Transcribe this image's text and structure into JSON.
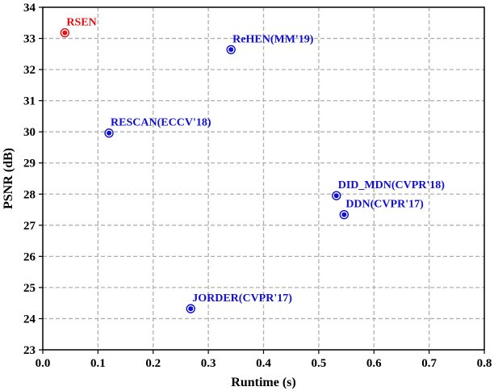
{
  "chart_data": {
    "type": "scatter",
    "xlabel": "Runtime (s)",
    "ylabel": "PSNR (dB)",
    "xlim": [
      0.0,
      0.8
    ],
    "ylim": [
      23,
      34
    ],
    "xticks": [
      "0.0",
      "0.1",
      "0.2",
      "0.3",
      "0.4",
      "0.5",
      "0.6",
      "0.7",
      "0.8"
    ],
    "yticks": [
      "23",
      "24",
      "25",
      "26",
      "27",
      "28",
      "29",
      "30",
      "31",
      "32",
      "33",
      "34"
    ],
    "grid": true,
    "points": [
      {
        "label": "RSEN",
        "x": 0.04,
        "y": 33.18,
        "color": "#e01010",
        "label_pos": "above-right"
      },
      {
        "label": "ReHEN(MM'19)",
        "x": 0.341,
        "y": 32.64,
        "color": "#1010d0",
        "label_pos": "above-right"
      },
      {
        "label": "RESCAN(ECCV'18)",
        "x": 0.12,
        "y": 29.96,
        "color": "#1010d0",
        "label_pos": "above-right"
      },
      {
        "label": "DID_MDN(CVPR'18)",
        "x": 0.532,
        "y": 27.95,
        "color": "#1010d0",
        "label_pos": "above-right"
      },
      {
        "label": "DDN(CVPR'17)",
        "x": 0.546,
        "y": 27.34,
        "color": "#1010d0",
        "label_pos": "above-right"
      },
      {
        "label": "JORDER(CVPR'17)",
        "x": 0.268,
        "y": 24.32,
        "color": "#1010d0",
        "label_pos": "above-right"
      }
    ]
  }
}
